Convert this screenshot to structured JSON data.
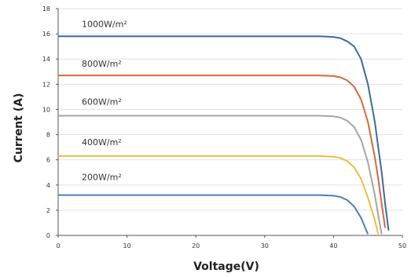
{
  "chart_data": {
    "type": "line",
    "title": "",
    "xlabel": "Voltage(V)",
    "ylabel": "Current (A)",
    "xlim": [
      0,
      50
    ],
    "ylim": [
      0,
      18
    ],
    "x_ticks": [
      "0",
      "10",
      "20",
      "30",
      "40",
      "50"
    ],
    "y_ticks": [
      "0",
      "2",
      "4",
      "6",
      "8",
      "10",
      "12",
      "14",
      "16",
      "18"
    ],
    "grid": "horizontal",
    "x": [
      0,
      5,
      10,
      15,
      20,
      25,
      30,
      35,
      38,
      40,
      41,
      42,
      43,
      44,
      45,
      46,
      46.5,
      47,
      47.5,
      48,
      48.3
    ],
    "series": [
      {
        "name": "1000W/m²",
        "color": "#3b6c9e",
        "values": [
          15.8,
          15.8,
          15.8,
          15.8,
          15.8,
          15.8,
          15.8,
          15.8,
          15.8,
          15.75,
          15.65,
          15.4,
          15.0,
          14.0,
          12.0,
          9.0,
          7.0,
          5.0,
          2.5,
          0.4,
          null
        ]
      },
      {
        "name": "800W/m²",
        "color": "#d9683a",
        "values": [
          12.7,
          12.7,
          12.7,
          12.7,
          12.7,
          12.7,
          12.7,
          12.7,
          12.7,
          12.65,
          12.55,
          12.3,
          11.8,
          10.8,
          9.0,
          6.2,
          4.5,
          2.5,
          0.6,
          null,
          null
        ]
      },
      {
        "name": "600W/m²",
        "color": "#a5a5a5",
        "values": [
          9.5,
          9.5,
          9.5,
          9.5,
          9.5,
          9.5,
          9.5,
          9.5,
          9.5,
          9.45,
          9.35,
          9.1,
          8.6,
          7.6,
          5.8,
          3.2,
          1.6,
          0.1,
          null,
          null,
          null
        ]
      },
      {
        "name": "400W/m²",
        "color": "#f2b942",
        "values": [
          6.3,
          6.3,
          6.3,
          6.3,
          6.3,
          6.3,
          6.3,
          6.3,
          6.3,
          6.25,
          6.15,
          5.9,
          5.4,
          4.5,
          3.0,
          1.2,
          0.1,
          null,
          null,
          null,
          null
        ]
      },
      {
        "name": "200W/m²",
        "color": "#4a7fb5",
        "values": [
          3.2,
          3.2,
          3.2,
          3.2,
          3.2,
          3.2,
          3.2,
          3.2,
          3.2,
          3.15,
          3.05,
          2.8,
          2.3,
          1.4,
          0.1,
          null,
          null,
          null,
          null,
          null,
          null
        ]
      }
    ]
  }
}
